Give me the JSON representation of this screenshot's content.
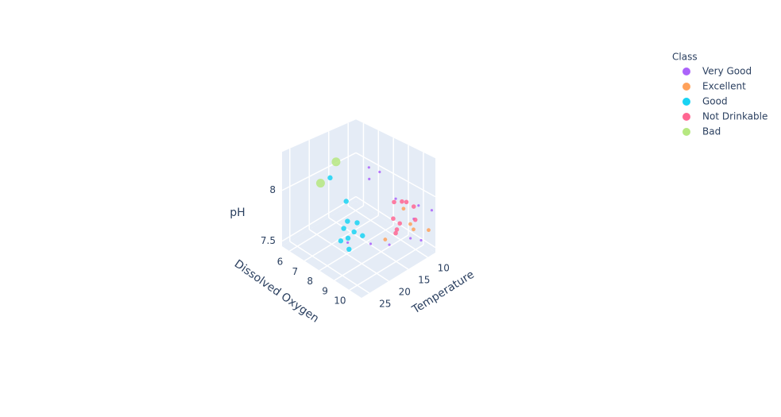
{
  "chart_data": {
    "type": "scatter3d",
    "xlabel": "Temperature",
    "ylabel": "Dissolved Oxygen",
    "zlabel": "pH",
    "xlim": [
      8,
      27
    ],
    "ylim": [
      5.5,
      10.8
    ],
    "zlim": [
      7.45,
      8.38
    ],
    "xticks": [
      10,
      15,
      20,
      25
    ],
    "yticks": [
      6,
      7,
      8,
      9,
      10
    ],
    "zticks": [
      7.5,
      8
    ],
    "grid": true,
    "legend_title": "Class",
    "legend_position": "upper right",
    "series": [
      {
        "name": "Very Good",
        "color": "#ab63fa",
        "size": 1.6,
        "x": [
          10.4,
          18.6,
          17.0,
          15.4,
          17.3,
          12.8,
          9.4,
          8.4,
          12.9,
          15.4,
          8.55,
          9.7
        ],
        "y": [
          10.3,
          7.7,
          8.7,
          9.0,
          8.8,
          9.4,
          9.5,
          9.95,
          9.0,
          8.4,
          10.7,
          9.8
        ],
        "z": [
          7.92,
          7.5,
          8.29,
          8.24,
          8.19,
          7.96,
          7.5,
          7.5,
          7.47,
          7.48,
          7.87,
          7.73
        ]
      },
      {
        "name": "Excellent",
        "color": "#FFA15A",
        "size": 2.4,
        "x": [
          10.2,
          8.2,
          9.0,
          10.8,
          13.0
        ],
        "y": [
          9.7,
          10.4,
          9.6,
          9.4,
          8.75
        ],
        "z": [
          7.68,
          7.64,
          7.59,
          7.82,
          7.5
        ]
      },
      {
        "name": "Good",
        "color": "#19d3f3",
        "size": 3.2,
        "x": [
          21.2,
          21.3,
          20.2,
          18.1,
          20.0,
          18.5,
          17.1,
          18.9,
          20.0,
          19.8
        ],
        "y": [
          7.2,
          8.3,
          8.1,
          8.2,
          7.8,
          8.1,
          8.3,
          7.8,
          7.6,
          8.1
        ],
        "z": [
          8.15,
          8.01,
          7.78,
          7.73,
          7.68,
          7.64,
          7.59,
          7.56,
          7.54,
          7.5
        ]
      },
      {
        "name": "Not Drinkable",
        "color": "#FF6692",
        "size": 2.8,
        "x": [
          8.6,
          8.9,
          8.5,
          9.4,
          10.6,
          10.2,
          10.3,
          9.7,
          10.1
        ],
        "y": [
          8.2,
          9.1,
          8.7,
          8.35,
          9.1,
          8.8,
          8.75,
          9.9,
          9.9
        ],
        "z": [
          7.73,
          7.82,
          7.78,
          7.59,
          7.64,
          7.54,
          7.5,
          7.73,
          7.87
        ]
      },
      {
        "name": "Bad",
        "color": "#B6E880",
        "size": 5.5,
        "x": [
          21.6,
          25.2
        ],
        "y": [
          7.7,
          7.6
        ],
        "z": [
          8.35,
          8.2
        ]
      }
    ]
  }
}
